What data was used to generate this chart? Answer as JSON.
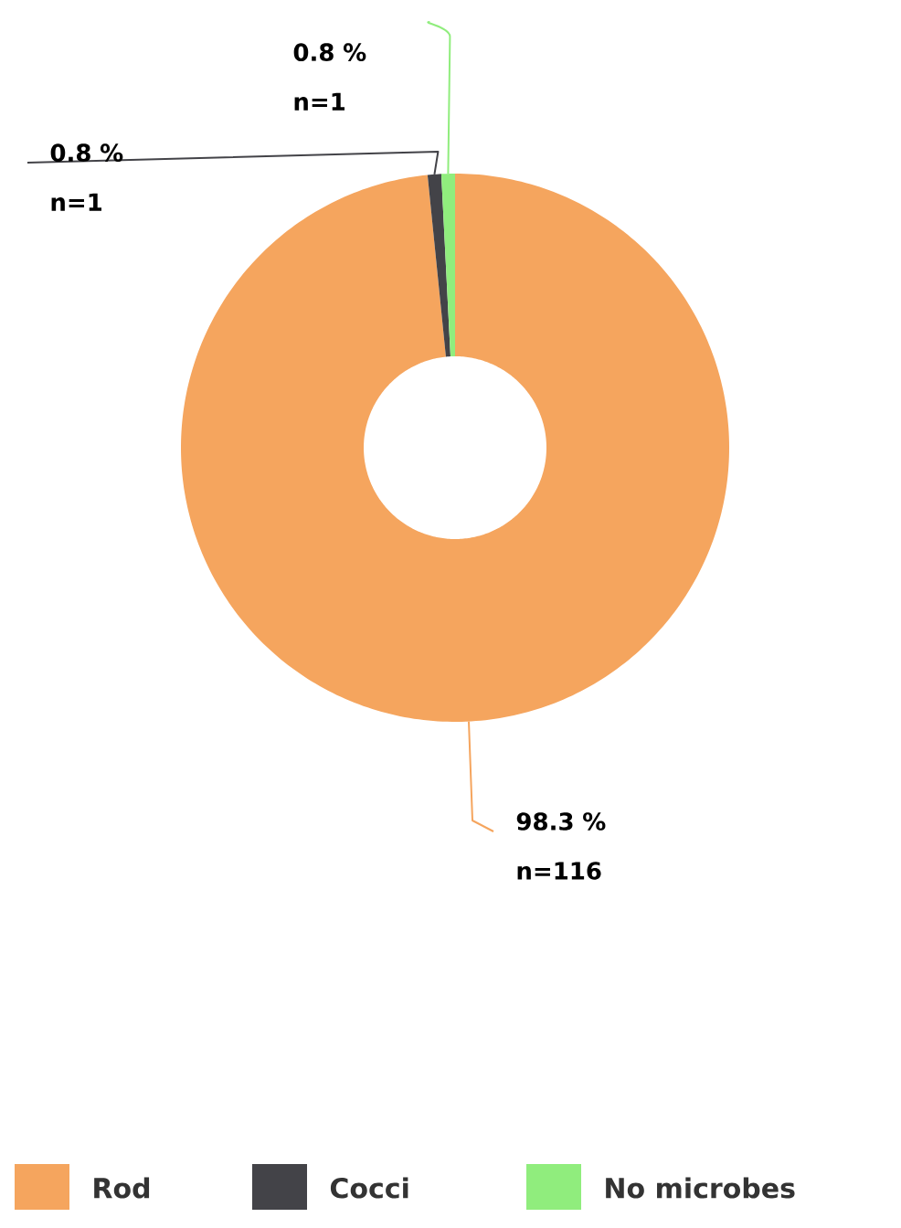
{
  "chart_data": {
    "type": "donut",
    "categories": [
      "Rod",
      "Cocci",
      "No microbes"
    ],
    "values": [
      98.3,
      0.8,
      0.8
    ],
    "colors": [
      "#f5a55e",
      "#434348",
      "#90ed7d"
    ],
    "value_labels": [
      "98.3 % n=116",
      "0.8 % n=1",
      "0.8 % n=1"
    ],
    "legend": "bottom"
  }
}
